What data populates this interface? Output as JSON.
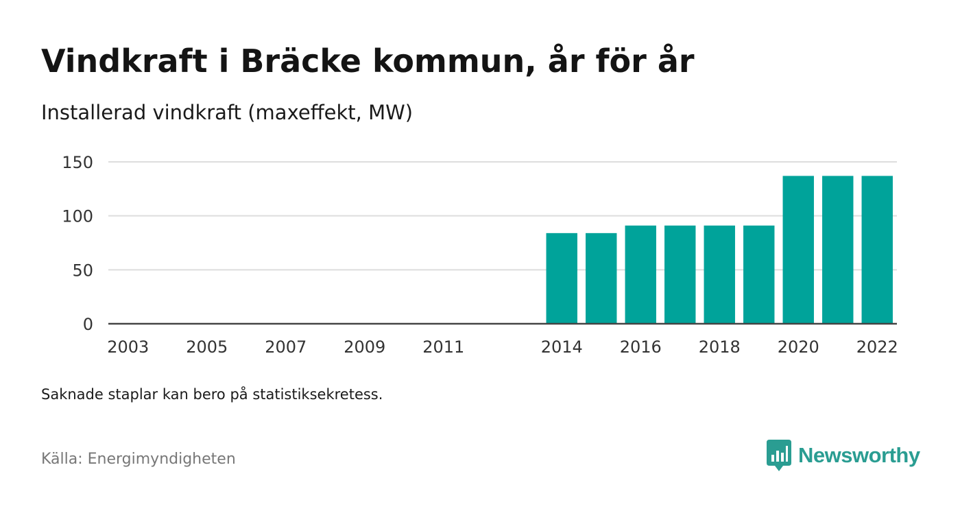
{
  "header": {
    "title": "Vindkraft i Bräcke kommun, år för år",
    "subtitle": "Installerad vindkraft (maxeffekt, MW)"
  },
  "footer": {
    "note": "Saknade staplar kan bero på statistiksekretess.",
    "source": "Källa: Energimyndigheten",
    "brand": "Newsworthy"
  },
  "colors": {
    "bar": "#00a39a",
    "brand": "#2a9d92",
    "grid": "#dddddd",
    "axis": "#444444"
  },
  "chart_data": {
    "type": "bar",
    "categories": [
      "2003",
      "2004",
      "2005",
      "2006",
      "2007",
      "2008",
      "2009",
      "2010",
      "2011",
      "2012",
      "2013",
      "2014",
      "2015",
      "2016",
      "2017",
      "2018",
      "2019",
      "2020",
      "2021",
      "2022"
    ],
    "values": [
      null,
      null,
      null,
      null,
      null,
      null,
      null,
      null,
      null,
      null,
      null,
      84,
      84,
      91,
      91,
      91,
      91,
      137,
      137,
      137
    ],
    "x_tick_labels": [
      "2003",
      "2005",
      "2007",
      "2009",
      "2011",
      "2014",
      "2016",
      "2018",
      "2020",
      "2022"
    ],
    "y_ticks": [
      0,
      50,
      100,
      150
    ],
    "ylim": [
      0,
      150
    ],
    "grid": true,
    "title": "Vindkraft i Bräcke kommun, år för år",
    "subtitle": "Installerad vindkraft (maxeffekt, MW)",
    "xlabel": "",
    "ylabel": ""
  }
}
